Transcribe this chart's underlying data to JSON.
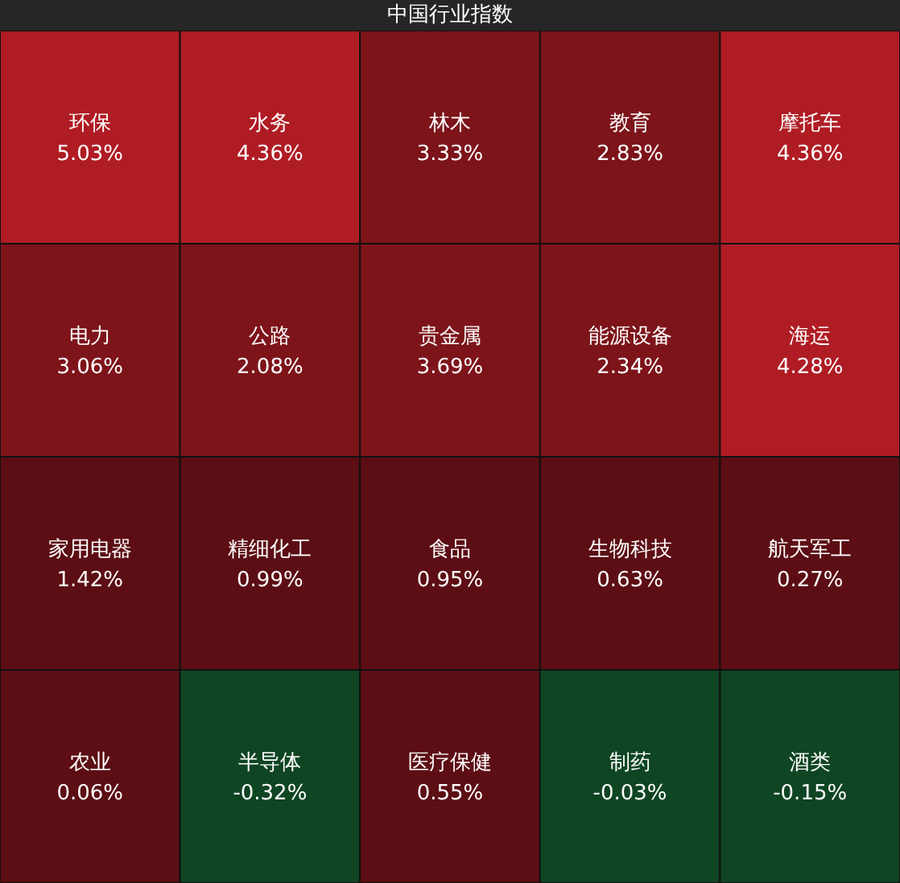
{
  "chart_data": {
    "type": "heatmap",
    "title": "中国行业指数",
    "categories": [
      null,
      null,
      null,
      null,
      null
    ],
    "y_categories": [
      null,
      null,
      null,
      null
    ],
    "cells": [
      [
        5.03,
        4.36,
        3.33,
        2.83,
        4.36
      ],
      [
        3.06,
        2.08,
        3.69,
        2.34,
        4.28
      ],
      [
        1.42,
        0.99,
        0.95,
        0.63,
        0.27
      ],
      [
        0.06,
        -0.32,
        0.55,
        -0.03,
        -0.15
      ]
    ],
    "cell_labels": [
      [
        "5.03%",
        "4.36%",
        "3.33%",
        "2.83%",
        "4.36%"
      ],
      [
        "3.06%",
        "2.08%",
        "3.69%",
        "2.34%",
        "4.28%"
      ],
      [
        "1.42%",
        "0.99%",
        "0.95%",
        "0.63%",
        "0.27%"
      ],
      [
        "0.06%",
        "-0.32%",
        "0.55%",
        "-0.03%",
        "-0.15%"
      ]
    ],
    "annotations": [
      "环保",
      "水务",
      "林木",
      "教育",
      "摩托车",
      "电力",
      "公路",
      "贵金属",
      "能源设备",
      "海运",
      "家用电器",
      "精细化工",
      "食品",
      "生物科技",
      "航天军工",
      "农业",
      "半导体",
      "医疗保健",
      "制药",
      "酒类"
    ]
  }
}
